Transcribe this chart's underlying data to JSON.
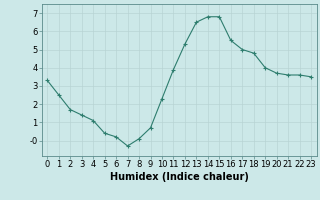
{
  "x": [
    0,
    1,
    2,
    3,
    4,
    5,
    6,
    7,
    8,
    9,
    10,
    11,
    12,
    13,
    14,
    15,
    16,
    17,
    18,
    19,
    20,
    21,
    22,
    23
  ],
  "y": [
    3.3,
    2.5,
    1.7,
    1.4,
    1.1,
    0.4,
    0.2,
    -0.3,
    0.1,
    0.7,
    2.3,
    3.9,
    5.3,
    6.5,
    6.8,
    6.8,
    5.5,
    5.0,
    4.8,
    4.0,
    3.7,
    3.6,
    3.6,
    3.5
  ],
  "xlabel": "Humidex (Indice chaleur)",
  "xlim": [
    -0.5,
    23.5
  ],
  "ylim": [
    -0.85,
    7.5
  ],
  "yticks": [
    0,
    1,
    2,
    3,
    4,
    5,
    6,
    7
  ],
  "ytick_labels": [
    "-0",
    "1",
    "2",
    "3",
    "4",
    "5",
    "6",
    "7"
  ],
  "xticks": [
    0,
    1,
    2,
    3,
    4,
    5,
    6,
    7,
    8,
    9,
    10,
    11,
    12,
    13,
    14,
    15,
    16,
    17,
    18,
    19,
    20,
    21,
    22,
    23
  ],
  "line_color": "#2e7d6e",
  "marker": "+",
  "bg_color": "#cce8e8",
  "grid_color": "#b8d4d4",
  "xlabel_fontsize": 7,
  "tick_fontsize": 6
}
